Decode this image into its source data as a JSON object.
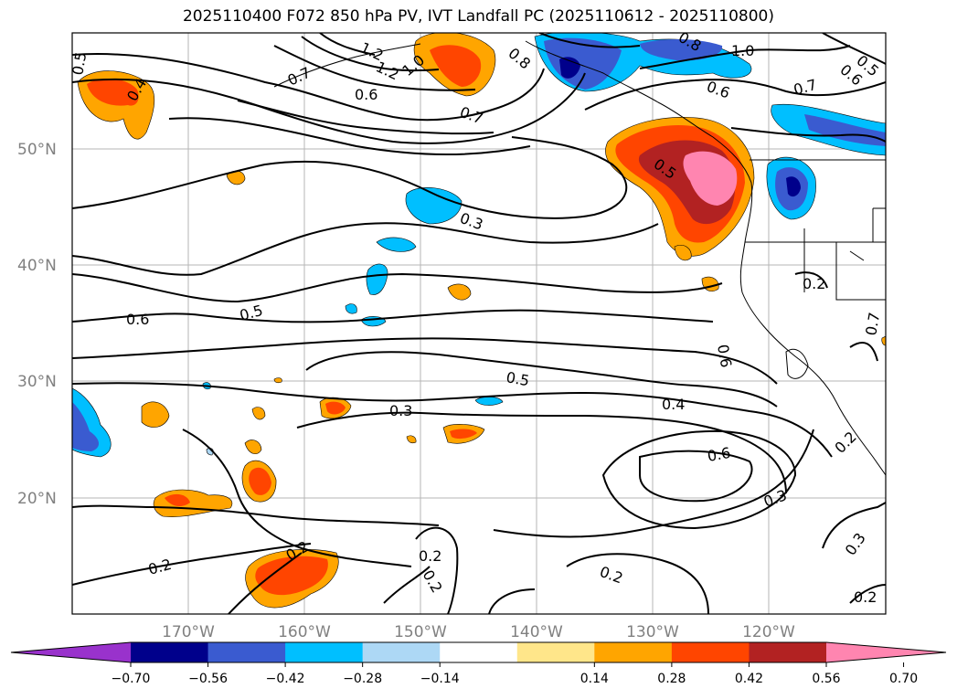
{
  "title": "2025110400 F072 850 hPa PV, IVT Landfall PC (2025110612 - 2025110800)",
  "lat_labels": [
    "50°N",
    "40°N",
    "30°N",
    "20°N"
  ],
  "lon_labels": [
    "170°W",
    "160°W",
    "150°W",
    "140°W",
    "130°W",
    "120°W"
  ],
  "contour_labels": {
    "c1": "0.5",
    "c2": "0.4",
    "c3": "1.2",
    "c4": "1.2",
    "c5": "0.7",
    "c6": "1.0",
    "c7": "0.6",
    "c8": "0.8",
    "c9": "0.7",
    "c10": "0.8",
    "c11": "1.0",
    "c12": "0.6",
    "c13": "0.5",
    "c14": "0.7",
    "c15": "0.6",
    "c16": "0.5",
    "c17": "0.3",
    "c18": "0.6",
    "c19": "0.5",
    "c20": "0.2",
    "c21": "0.6",
    "c22": "0.7",
    "c23": "0.5",
    "c24": "0.3",
    "c25": "0.4",
    "c26": "0.6",
    "c27": "0.2",
    "c28": "0.3",
    "c29": "0.2",
    "c30": "0.2",
    "c31": "0.2",
    "c32": "0.2",
    "c33": "0.2",
    "c34": "0.3",
    "c35": "0.2"
  },
  "colorbar": {
    "ticks": [
      "−0.70",
      "−0.56",
      "−0.42",
      "−0.28",
      "−0.14",
      "0.14",
      "0.28",
      "0.42",
      "0.56",
      "0.70"
    ],
    "colors": [
      "#9932cc",
      "#00008b",
      "#3a5bd0",
      "#00bfff",
      "#add8f5",
      "#ffffff",
      "#ffe68a",
      "#ffa500",
      "#ff4500",
      "#b22222",
      "#ff85b0"
    ]
  }
}
